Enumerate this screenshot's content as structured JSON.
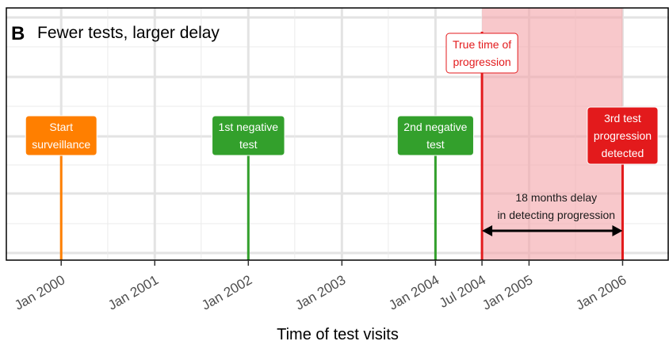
{
  "chart_data": {
    "type": "timeline",
    "panel_letter": "B",
    "title": "Fewer tests, larger delay",
    "xlabel": "Time of test visits",
    "xlim": [
      "1999-06-01",
      "2006-07-01"
    ],
    "x_ticks": [
      {
        "date": "2000-01-01",
        "label": "Jan 2000"
      },
      {
        "date": "2001-01-01",
        "label": "Jan 2001"
      },
      {
        "date": "2002-01-01",
        "label": "Jan 2002"
      },
      {
        "date": "2003-01-01",
        "label": "Jan 2003"
      },
      {
        "date": "2004-01-01",
        "label": "Jan 2004"
      },
      {
        "date": "2004-07-01",
        "label": "Jul 2004"
      },
      {
        "date": "2005-01-01",
        "label": "Jan 2005"
      },
      {
        "date": "2006-01-01",
        "label": "Jan 2006"
      }
    ],
    "grid": true,
    "shaded_region": {
      "start": "2004-07-01",
      "end": "2006-01-01",
      "color": "#f4a6ab"
    },
    "events": [
      {
        "date": "2000-01-01",
        "lines": [
          "Start",
          "surveillance"
        ],
        "color": "#ff7f00",
        "style": "filled"
      },
      {
        "date": "2002-01-01",
        "lines": [
          "1st negative",
          "test"
        ],
        "color": "#33a02c",
        "style": "filled"
      },
      {
        "date": "2004-01-01",
        "lines": [
          "2nd negative",
          "test"
        ],
        "color": "#33a02c",
        "style": "filled"
      },
      {
        "date": "2004-07-01",
        "lines": [
          "True time of",
          "progression"
        ],
        "color": "#e31a1c",
        "style": "outline"
      },
      {
        "date": "2006-01-01",
        "lines": [
          "3rd test",
          "progression",
          "detected"
        ],
        "color": "#e31a1c",
        "style": "filled"
      }
    ],
    "annotation": {
      "lines": [
        "18 months delay",
        "in detecting progression"
      ],
      "from": "2004-07-01",
      "to": "2006-01-01",
      "delay_months": 18
    }
  }
}
